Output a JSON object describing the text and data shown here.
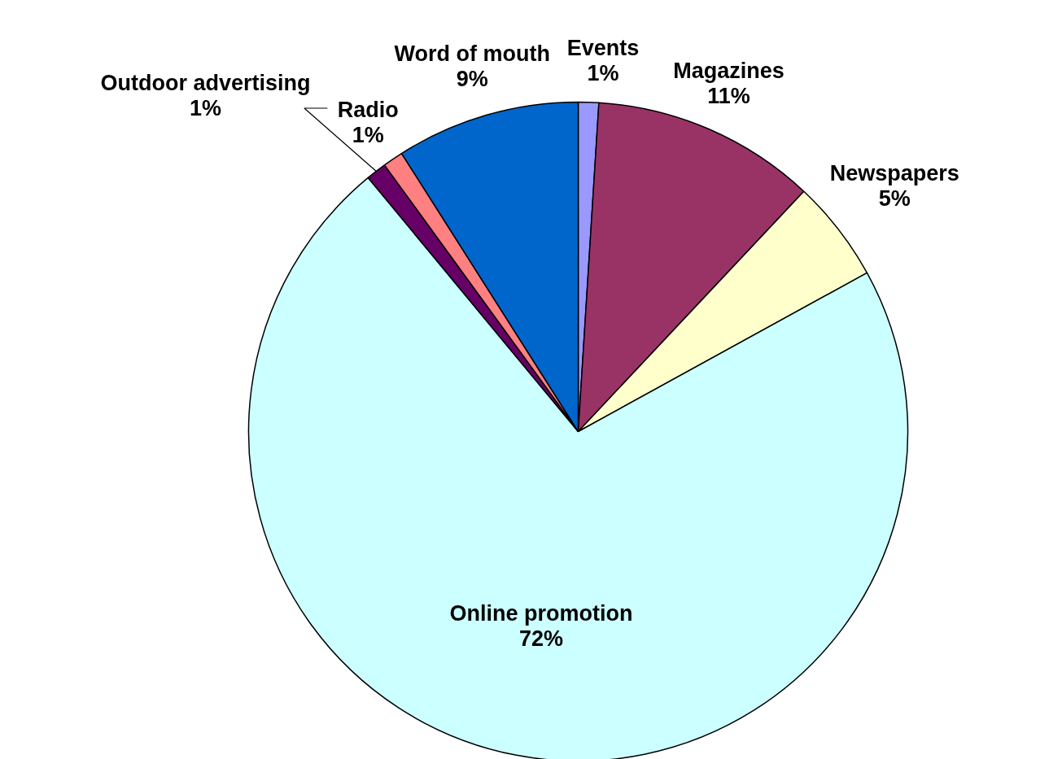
{
  "chart_data": {
    "type": "pie",
    "categories": [
      "Events",
      "Magazines",
      "Newspapers",
      "Online promotion",
      "Outdoor advertising",
      "Radio",
      "Word of mouth"
    ],
    "values": [
      1,
      11,
      5,
      72,
      1,
      1,
      9
    ],
    "value_labels": [
      "1%",
      "11%",
      "5%",
      "72%",
      "1%",
      "1%",
      "9%"
    ],
    "colors": [
      "#9999ff",
      "#993366",
      "#ffffcc",
      "#ccffff",
      "#660066",
      "#ff8080",
      "#0066cc"
    ]
  }
}
